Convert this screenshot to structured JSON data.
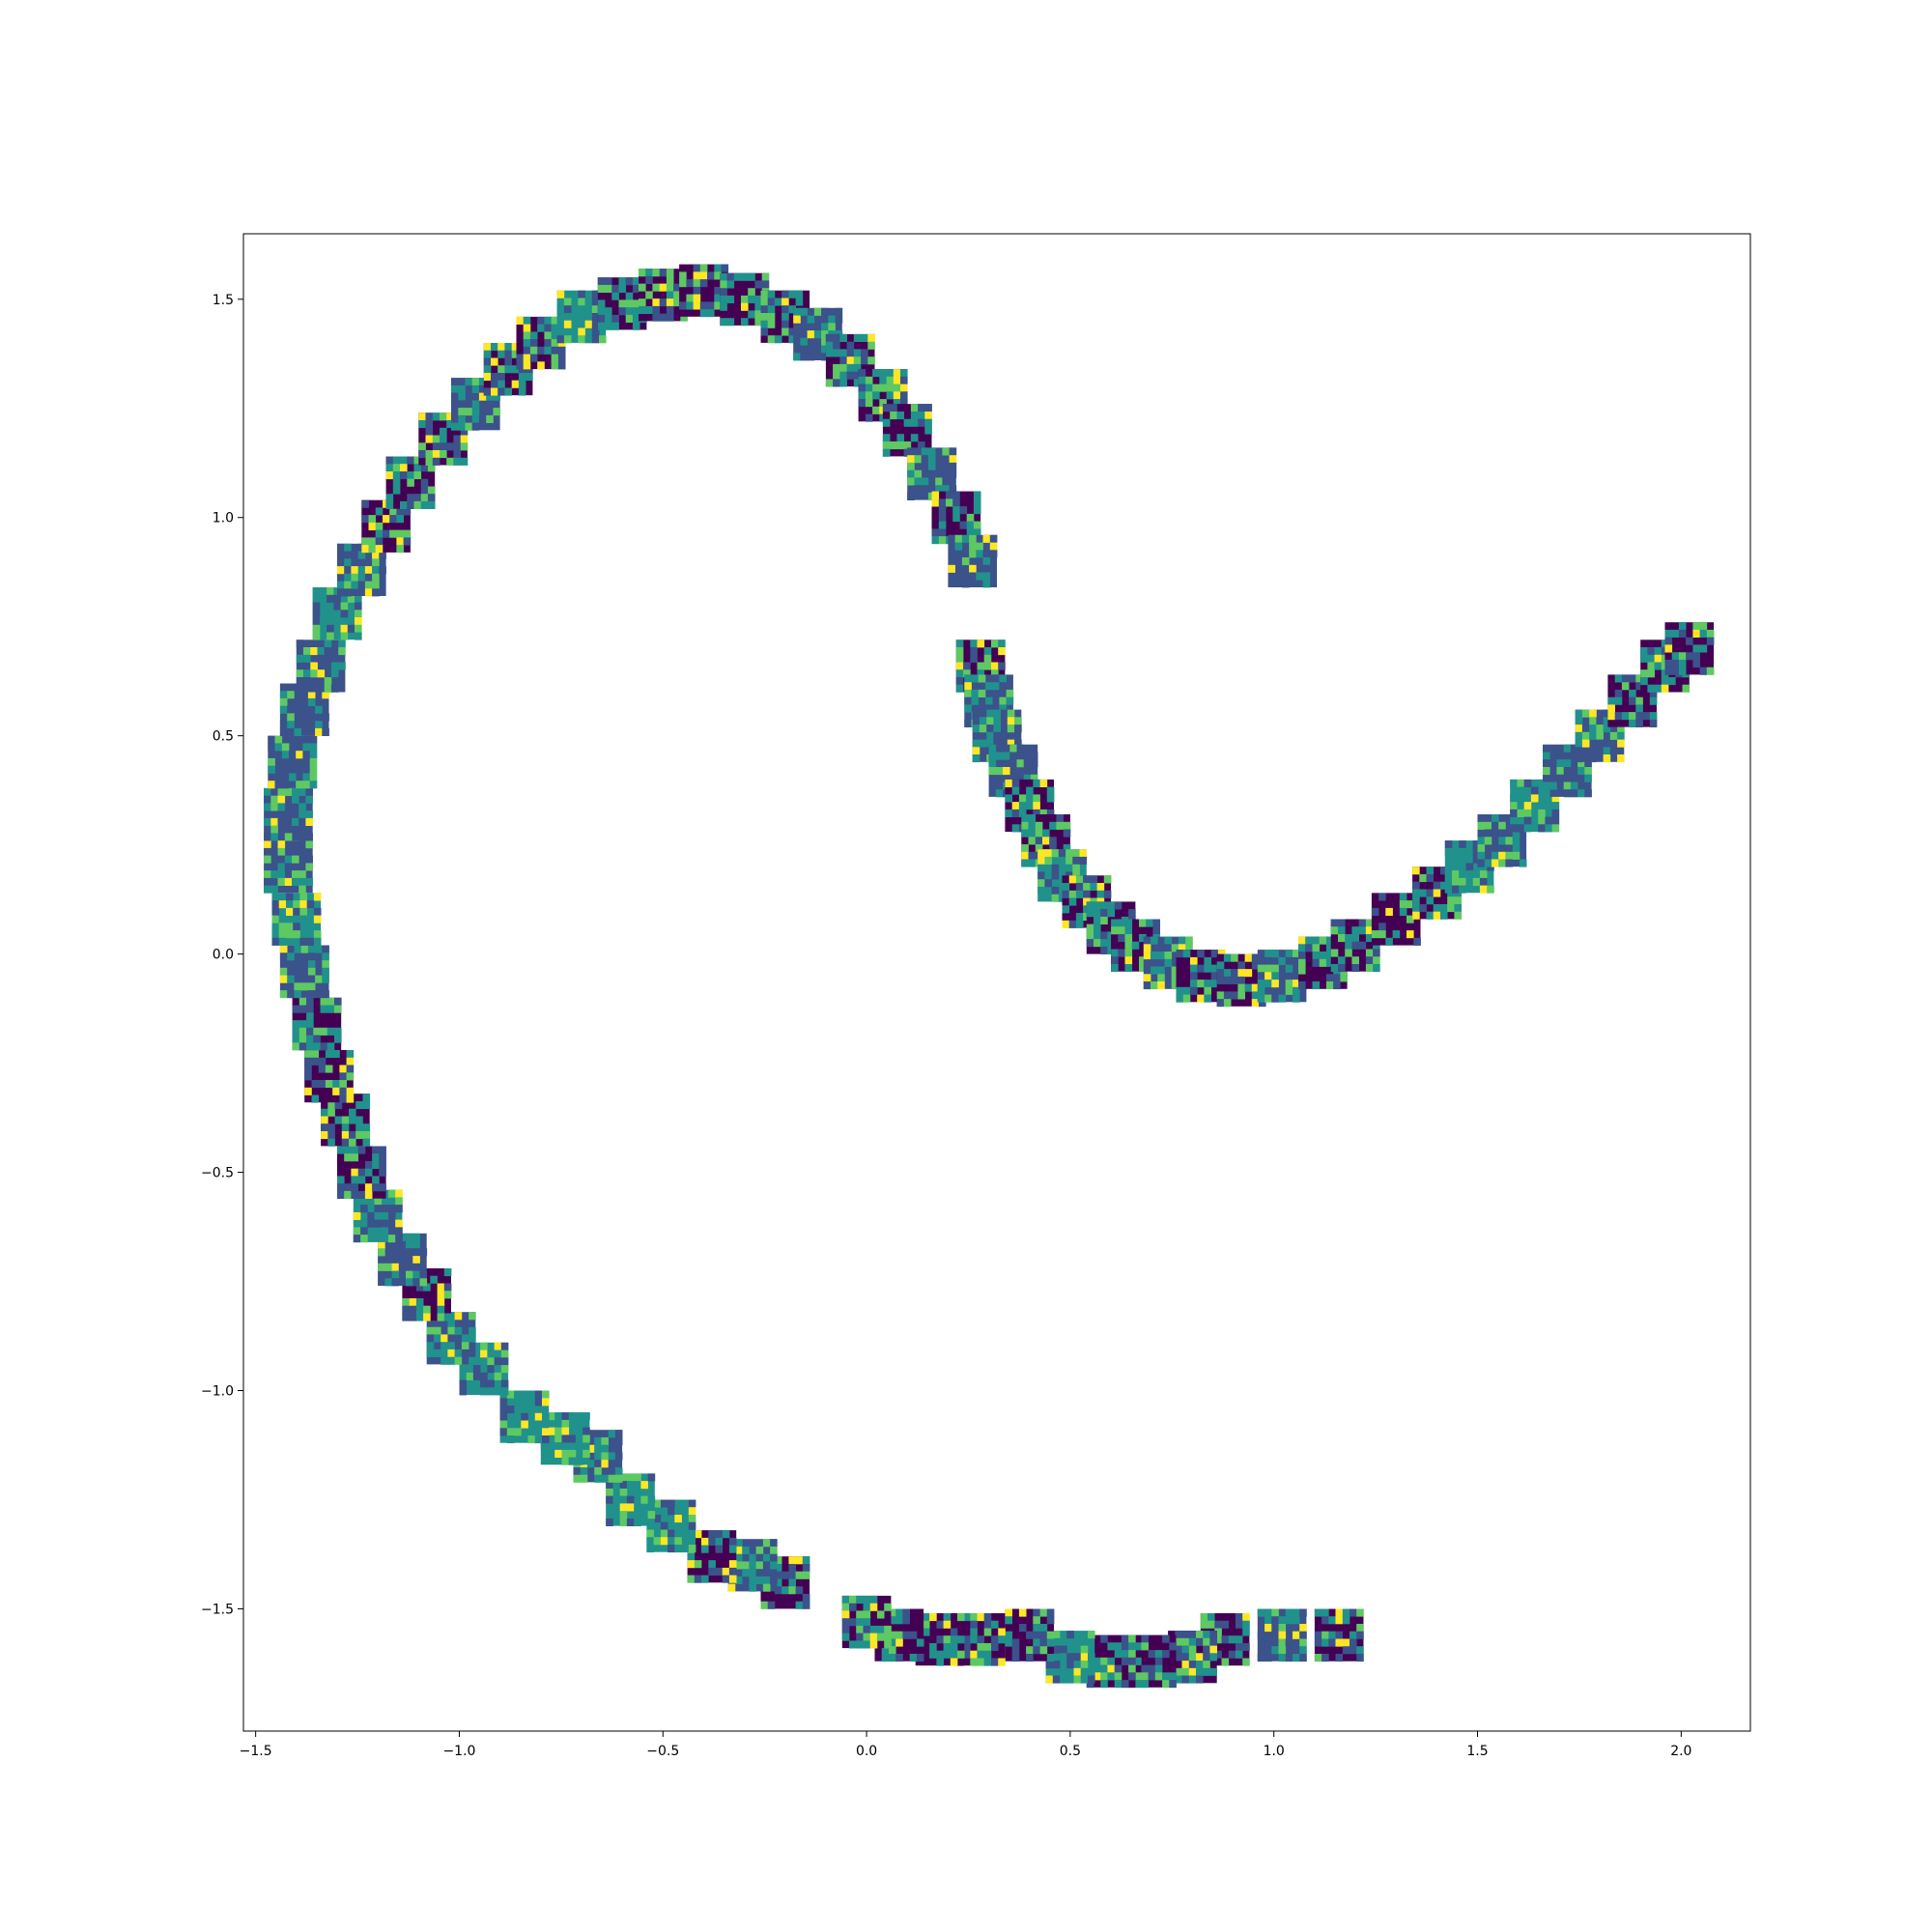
{
  "chart_data": {
    "type": "scatter",
    "title": "",
    "xlabel": "",
    "ylabel": "",
    "xlim": [
      -1.53,
      2.17
    ],
    "ylim": [
      -1.78,
      1.65
    ],
    "grid": false,
    "legend": "none",
    "marker": "image-thumbnail-patch",
    "marker_size": [
      0.12,
      0.12
    ],
    "colormap": [
      "#440154",
      "#3b528b",
      "#21918c",
      "#5ec962",
      "#fde725"
    ],
    "x_ticks": [
      {
        "value": -1.5,
        "label": "−1.5"
      },
      {
        "value": -1.0,
        "label": "−1.0"
      },
      {
        "value": -0.5,
        "label": "−0.5"
      },
      {
        "value": 0.0,
        "label": "0.0"
      },
      {
        "value": 0.5,
        "label": "0.5"
      },
      {
        "value": 1.0,
        "label": "1.0"
      },
      {
        "value": 1.5,
        "label": "1.5"
      },
      {
        "value": 2.0,
        "label": "2.0"
      }
    ],
    "y_ticks": [
      {
        "value": 1.5,
        "label": "1.5"
      },
      {
        "value": 1.0,
        "label": "1.0"
      },
      {
        "value": 0.5,
        "label": "0.5"
      },
      {
        "value": 0.0,
        "label": "0.0"
      },
      {
        "value": -0.5,
        "label": "−0.5"
      },
      {
        "value": -1.0,
        "label": "−1.0"
      },
      {
        "value": -1.5,
        "label": "−1.5"
      }
    ],
    "series": [
      {
        "points": [
          [
            1.16,
            -1.56
          ],
          [
            1.02,
            -1.56
          ],
          [
            0.88,
            -1.57
          ],
          [
            0.8,
            -1.61
          ],
          [
            0.7,
            -1.62
          ],
          [
            0.6,
            -1.62
          ],
          [
            0.5,
            -1.61
          ],
          [
            0.4,
            -1.56
          ],
          [
            0.28,
            -1.57
          ],
          [
            0.18,
            -1.57
          ],
          [
            0.08,
            -1.56
          ],
          [
            0.0,
            -1.53
          ],
          [
            -0.2,
            -1.44
          ],
          [
            -0.28,
            -1.4
          ],
          [
            -0.38,
            -1.38
          ],
          [
            -0.48,
            -1.31
          ],
          [
            -0.58,
            -1.25
          ],
          [
            -0.66,
            -1.15
          ],
          [
            -0.74,
            -1.11
          ],
          [
            -0.84,
            -1.06
          ],
          [
            -0.94,
            -0.95
          ],
          [
            -1.02,
            -0.88
          ],
          [
            -1.08,
            -0.78
          ],
          [
            -1.14,
            -0.7
          ],
          [
            -1.2,
            -0.6
          ],
          [
            -1.24,
            -0.5
          ],
          [
            -1.28,
            -0.38
          ],
          [
            -1.32,
            -0.28
          ],
          [
            -1.35,
            -0.16
          ],
          [
            -1.38,
            -0.04
          ],
          [
            -1.4,
            0.08
          ],
          [
            -1.42,
            0.2
          ],
          [
            -1.42,
            0.32
          ],
          [
            -1.41,
            0.44
          ],
          [
            -1.38,
            0.56
          ],
          [
            -1.34,
            0.66
          ],
          [
            -1.3,
            0.78
          ],
          [
            -1.24,
            0.88
          ],
          [
            -1.18,
            0.98
          ],
          [
            -1.12,
            1.08
          ],
          [
            -1.04,
            1.18
          ],
          [
            -0.96,
            1.26
          ],
          [
            -0.88,
            1.34
          ],
          [
            -0.8,
            1.4
          ],
          [
            -0.7,
            1.46
          ],
          [
            -0.6,
            1.49
          ],
          [
            -0.5,
            1.51
          ],
          [
            -0.4,
            1.52
          ],
          [
            -0.3,
            1.5
          ],
          [
            -0.2,
            1.46
          ],
          [
            -0.12,
            1.42
          ],
          [
            -0.04,
            1.36
          ],
          [
            0.04,
            1.28
          ],
          [
            0.1,
            1.2
          ],
          [
            0.16,
            1.1
          ],
          [
            0.22,
            1.0
          ],
          [
            0.26,
            0.9
          ],
          [
            0.28,
            0.66
          ],
          [
            0.3,
            0.58
          ],
          [
            0.32,
            0.5
          ],
          [
            0.36,
            0.42
          ],
          [
            0.4,
            0.34
          ],
          [
            0.44,
            0.26
          ],
          [
            0.48,
            0.18
          ],
          [
            0.54,
            0.12
          ],
          [
            0.6,
            0.06
          ],
          [
            0.66,
            0.02
          ],
          [
            0.74,
            -0.02
          ],
          [
            0.82,
            -0.05
          ],
          [
            0.92,
            -0.06
          ],
          [
            1.02,
            -0.05
          ],
          [
            1.12,
            -0.02
          ],
          [
            1.2,
            0.02
          ],
          [
            1.3,
            0.08
          ],
          [
            1.4,
            0.14
          ],
          [
            1.48,
            0.2
          ],
          [
            1.56,
            0.26
          ],
          [
            1.64,
            0.34
          ],
          [
            1.72,
            0.42
          ],
          [
            1.8,
            0.5
          ],
          [
            1.88,
            0.58
          ],
          [
            1.96,
            0.66
          ],
          [
            2.02,
            0.7
          ]
        ]
      }
    ]
  }
}
